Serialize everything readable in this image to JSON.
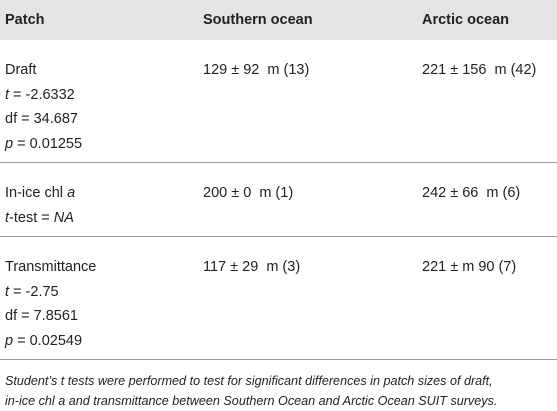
{
  "table": {
    "header": [
      "Patch",
      "Southern ocean",
      "Arctic ocean"
    ],
    "rows": [
      [
        [
          [
            "Draft"
          ],
          [
            {
              "text": "t",
              "italic": true
            },
            " = -2.6332"
          ],
          [
            "df = 34.687"
          ],
          [
            {
              "text": "p",
              "italic": true
            },
            " = 0.01255"
          ]
        ],
        [
          [
            "129 ± 92  m (13)"
          ]
        ],
        [
          [
            "221 ± 156  m (42)"
          ]
        ]
      ],
      [
        [
          [
            "In-ice chl ",
            {
              "text": "a",
              "italic": true
            }
          ],
          [
            {
              "text": "t",
              "italic": true
            },
            "-test = ",
            {
              "text": "NA",
              "italic": true
            }
          ]
        ],
        [
          [
            "200 ± 0  m (1)"
          ]
        ],
        [
          [
            "242 ± 66  m (6)"
          ]
        ]
      ],
      [
        [
          [
            "Transmittance"
          ],
          [
            {
              "text": "t",
              "italic": true
            },
            " = -2.75"
          ],
          [
            "df = 7.8561"
          ],
          [
            {
              "text": "p",
              "italic": true
            },
            " = 0.02549"
          ]
        ],
        [
          [
            "117 ± 29  m (3)"
          ]
        ],
        [
          [
            "221 ± m 90 (7)"
          ]
        ]
      ]
    ],
    "footnote": [
      "Student’s t tests were performed to test for significant differences in patch sizes of draft,",
      "in-ice chl a and transmittance between Southern Ocean and Arctic Ocean SUIT surveys."
    ]
  }
}
